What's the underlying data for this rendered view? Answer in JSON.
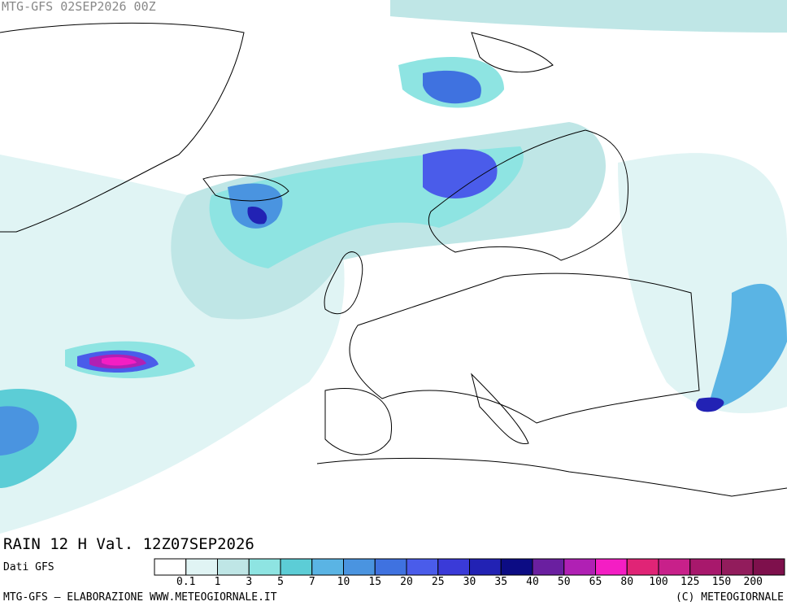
{
  "header": {
    "title": "MTG-GFS 02SEP2026 00Z"
  },
  "caption": "RAIN 12 H Val. 12Z07SEP2026",
  "legend": {
    "source": "Dati GFS",
    "colors": [
      "#ffffff",
      "#e0f4f4",
      "#bfe6e6",
      "#8ee4e2",
      "#5ccdd6",
      "#5ab4e4",
      "#4a94e0",
      "#3f72e0",
      "#4a5cea",
      "#3a3ad8",
      "#2222b4",
      "#0c0c84",
      "#6a1fa0",
      "#b020b4",
      "#f41ec4",
      "#e02476",
      "#c8208a",
      "#a8186c",
      "#921c5c",
      "#7e104c"
    ],
    "labels": [
      "0.1",
      "1",
      "3",
      "5",
      "7",
      "10",
      "15",
      "20",
      "25",
      "30",
      "35",
      "40",
      "50",
      "65",
      "80",
      "100",
      "125",
      "150",
      "200"
    ]
  },
  "footer": {
    "left": "MTG-GFS – ELABORAZIONE WWW.METEOGIORNALE.IT",
    "right": "(C) METEOGIORNALE"
  }
}
